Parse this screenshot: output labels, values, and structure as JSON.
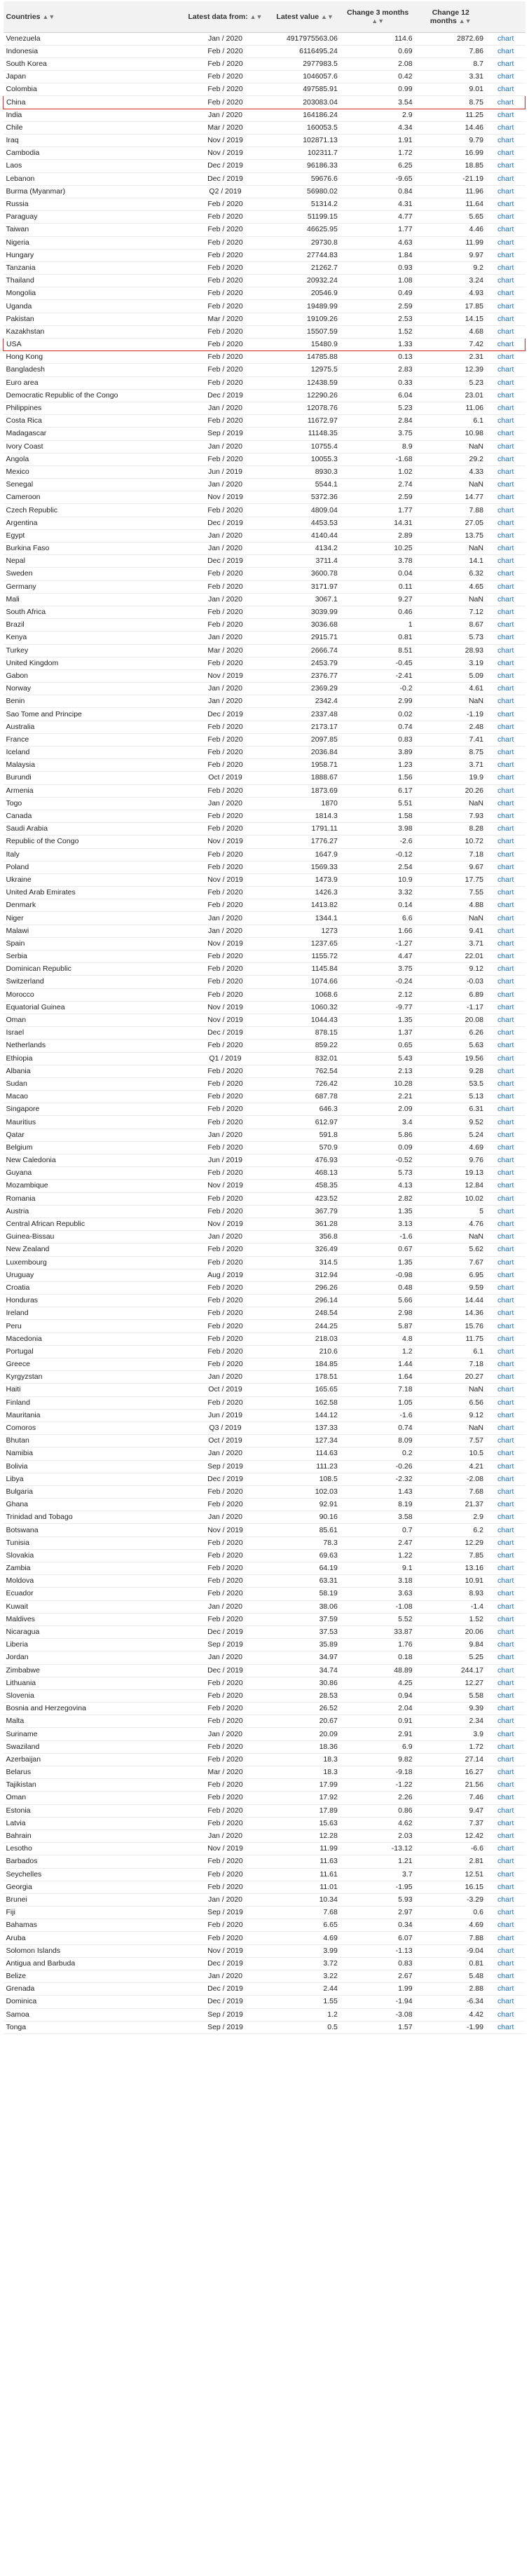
{
  "header": {
    "countries": "Countries",
    "latest_data": "Latest data from:",
    "latest_value": "Latest value",
    "change3": "Change 3 months",
    "change12": "Change 12 months",
    "sort_icon": "sort-arrows-icon"
  },
  "highlight_color": "#d62828",
  "link_color": "#1a6fc4",
  "rows": [
    [
      "Venezuela",
      "Jan / 2020",
      "4917975563.06",
      "114.6",
      "2872.69",
      "chart"
    ],
    [
      "Indonesia",
      "Feb / 2020",
      "6116495.24",
      "0.69",
      "7.86",
      "chart"
    ],
    [
      "South Korea",
      "Feb / 2020",
      "2977983.5",
      "2.08",
      "8.7",
      "chart"
    ],
    [
      "Japan",
      "Feb / 2020",
      "1046057.6",
      "0.42",
      "3.31",
      "chart"
    ],
    [
      "Colombia",
      "Feb / 2020",
      "497585.91",
      "0.99",
      "9.01",
      "chart"
    ],
    [
      "China",
      "Feb / 2020",
      "203083.04",
      "3.54",
      "8.75",
      "chart"
    ],
    [
      "India",
      "Jan / 2020",
      "164186.24",
      "2.9",
      "11.25",
      "chart"
    ],
    [
      "Chile",
      "Mar / 2020",
      "160053.5",
      "4.34",
      "14.46",
      "chart"
    ],
    [
      "Iraq",
      "Nov / 2019",
      "102871.13",
      "1.91",
      "9.79",
      "chart"
    ],
    [
      "Cambodia",
      "Nov / 2019",
      "102311.7",
      "1.72",
      "16.99",
      "chart"
    ],
    [
      "Laos",
      "Dec / 2019",
      "96186.33",
      "6.25",
      "18.85",
      "chart"
    ],
    [
      "Lebanon",
      "Dec / 2019",
      "59676.6",
      "-9.65",
      "-21.19",
      "chart"
    ],
    [
      "Burma (Myanmar)",
      "Q2 / 2019",
      "56980.02",
      "0.84",
      "11.96",
      "chart"
    ],
    [
      "Russia",
      "Feb / 2020",
      "51314.2",
      "4.31",
      "11.64",
      "chart"
    ],
    [
      "Paraguay",
      "Feb / 2020",
      "51199.15",
      "4.77",
      "5.65",
      "chart"
    ],
    [
      "Taiwan",
      "Feb / 2020",
      "46625.95",
      "1.77",
      "4.46",
      "chart"
    ],
    [
      "Nigeria",
      "Feb / 2020",
      "29730.8",
      "4.63",
      "11.99",
      "chart"
    ],
    [
      "Hungary",
      "Feb / 2020",
      "27744.83",
      "1.84",
      "9.97",
      "chart"
    ],
    [
      "Tanzania",
      "Feb / 2020",
      "21262.7",
      "0.93",
      "9.2",
      "chart"
    ],
    [
      "Thailand",
      "Feb / 2020",
      "20932.24",
      "1.08",
      "3.24",
      "chart"
    ],
    [
      "Mongolia",
      "Feb / 2020",
      "20546.9",
      "0.49",
      "4.93",
      "chart"
    ],
    [
      "Uganda",
      "Feb / 2020",
      "19489.99",
      "2.59",
      "17.85",
      "chart"
    ],
    [
      "Pakistan",
      "Mar / 2020",
      "19109.26",
      "2.53",
      "14.15",
      "chart"
    ],
    [
      "Kazakhstan",
      "Feb / 2020",
      "15507.59",
      "1.52",
      "4.68",
      "chart"
    ],
    [
      "USA",
      "Feb / 2020",
      "15480.9",
      "1.33",
      "7.42",
      "chart"
    ],
    [
      "Hong Kong",
      "Feb / 2020",
      "14785.88",
      "0.13",
      "2.31",
      "chart"
    ],
    [
      "Bangladesh",
      "Feb / 2020",
      "12975.5",
      "2.83",
      "12.39",
      "chart"
    ],
    [
      "Euro area",
      "Feb / 2020",
      "12438.59",
      "0.33",
      "5.23",
      "chart"
    ],
    [
      "Democratic Republic of the Congo",
      "Dec / 2019",
      "12290.26",
      "6.04",
      "23.01",
      "chart"
    ],
    [
      "Philippines",
      "Jan / 2020",
      "12078.76",
      "5.23",
      "11.06",
      "chart"
    ],
    [
      "Costa Rica",
      "Feb / 2020",
      "11672.97",
      "2.84",
      "6.1",
      "chart"
    ],
    [
      "Madagascar",
      "Sep / 2019",
      "11148.35",
      "3.75",
      "10.98",
      "chart"
    ],
    [
      "Ivory Coast",
      "Jan / 2020",
      "10755.4",
      "8.9",
      "NaN",
      "chart"
    ],
    [
      "Angola",
      "Feb / 2020",
      "10055.3",
      "-1.68",
      "29.2",
      "chart"
    ],
    [
      "Mexico",
      "Jun / 2019",
      "8930.3",
      "1.02",
      "4.33",
      "chart"
    ],
    [
      "Senegal",
      "Jan / 2020",
      "5544.1",
      "2.74",
      "NaN",
      "chart"
    ],
    [
      "Cameroon",
      "Nov / 2019",
      "5372.36",
      "2.59",
      "14.77",
      "chart"
    ],
    [
      "Czech Republic",
      "Feb / 2020",
      "4809.04",
      "1.77",
      "7.88",
      "chart"
    ],
    [
      "Argentina",
      "Dec / 2019",
      "4453.53",
      "14.31",
      "27.05",
      "chart"
    ],
    [
      "Egypt",
      "Jan / 2020",
      "4140.44",
      "2.89",
      "13.75",
      "chart"
    ],
    [
      "Burkina Faso",
      "Jan / 2020",
      "4134.2",
      "10.25",
      "NaN",
      "chart"
    ],
    [
      "Nepal",
      "Dec / 2019",
      "3711.4",
      "3.78",
      "14.1",
      "chart"
    ],
    [
      "Sweden",
      "Feb / 2020",
      "3600.78",
      "0.04",
      "6.32",
      "chart"
    ],
    [
      "Germany",
      "Feb / 2020",
      "3171.97",
      "0.11",
      "4.65",
      "chart"
    ],
    [
      "Mali",
      "Jan / 2020",
      "3067.1",
      "9.27",
      "NaN",
      "chart"
    ],
    [
      "South Africa",
      "Feb / 2020",
      "3039.99",
      "0.46",
      "7.12",
      "chart"
    ],
    [
      "Brazil",
      "Feb / 2020",
      "3036.68",
      "1",
      "8.67",
      "chart"
    ],
    [
      "Kenya",
      "Jan / 2020",
      "2915.71",
      "0.81",
      "5.73",
      "chart"
    ],
    [
      "Turkey",
      "Mar / 2020",
      "2666.74",
      "8.51",
      "28.93",
      "chart"
    ],
    [
      "United Kingdom",
      "Feb / 2020",
      "2453.79",
      "-0.45",
      "3.19",
      "chart"
    ],
    [
      "Gabon",
      "Nov / 2019",
      "2376.77",
      "-2.41",
      "5.09",
      "chart"
    ],
    [
      "Norway",
      "Jan / 2020",
      "2369.29",
      "-0.2",
      "4.61",
      "chart"
    ],
    [
      "Benin",
      "Jan / 2020",
      "2342.4",
      "2.99",
      "NaN",
      "chart"
    ],
    [
      "Sao Tome and Principe",
      "Dec / 2019",
      "2337.48",
      "0.02",
      "-1.19",
      "chart"
    ],
    [
      "Australia",
      "Feb / 2020",
      "2173.17",
      "0.74",
      "2.48",
      "chart"
    ],
    [
      "France",
      "Feb / 2020",
      "2097.85",
      "0.83",
      "7.41",
      "chart"
    ],
    [
      "Iceland",
      "Feb / 2020",
      "2036.84",
      "3.89",
      "8.75",
      "chart"
    ],
    [
      "Malaysia",
      "Feb / 2020",
      "1958.71",
      "1.23",
      "3.71",
      "chart"
    ],
    [
      "Burundi",
      "Oct / 2019",
      "1888.67",
      "1.56",
      "19.9",
      "chart"
    ],
    [
      "Armenia",
      "Feb / 2020",
      "1873.69",
      "6.17",
      "20.26",
      "chart"
    ],
    [
      "Togo",
      "Jan / 2020",
      "1870",
      "5.51",
      "NaN",
      "chart"
    ],
    [
      "Canada",
      "Feb / 2020",
      "1814.3",
      "1.58",
      "7.93",
      "chart"
    ],
    [
      "Saudi Arabia",
      "Feb / 2020",
      "1791.11",
      "3.98",
      "8.28",
      "chart"
    ],
    [
      "Republic of the Congo",
      "Nov / 2019",
      "1776.27",
      "-2.6",
      "10.72",
      "chart"
    ],
    [
      "Italy",
      "Feb / 2020",
      "1647.9",
      "-0.12",
      "7.18",
      "chart"
    ],
    [
      "Poland",
      "Feb / 2020",
      "1569.33",
      "2.54",
      "9.67",
      "chart"
    ],
    [
      "Ukraine",
      "Nov / 2019",
      "1473.9",
      "10.9",
      "17.75",
      "chart"
    ],
    [
      "United Arab Emirates",
      "Feb / 2020",
      "1426.3",
      "3.32",
      "7.55",
      "chart"
    ],
    [
      "Denmark",
      "Feb / 2020",
      "1413.82",
      "0.14",
      "4.88",
      "chart"
    ],
    [
      "Niger",
      "Jan / 2020",
      "1344.1",
      "6.6",
      "NaN",
      "chart"
    ],
    [
      "Malawi",
      "Jan / 2020",
      "1273",
      "1.66",
      "9.41",
      "chart"
    ],
    [
      "Spain",
      "Nov / 2019",
      "1237.65",
      "-1.27",
      "3.71",
      "chart"
    ],
    [
      "Serbia",
      "Feb / 2020",
      "1155.72",
      "4.47",
      "22.01",
      "chart"
    ],
    [
      "Dominican Republic",
      "Feb / 2020",
      "1145.84",
      "3.75",
      "9.12",
      "chart"
    ],
    [
      "Switzerland",
      "Feb / 2020",
      "1074.66",
      "-0.24",
      "-0.03",
      "chart"
    ],
    [
      "Morocco",
      "Feb / 2020",
      "1068.6",
      "2.12",
      "6.89",
      "chart"
    ],
    [
      "Equatorial Guinea",
      "Nov / 2019",
      "1060.32",
      "-9.77",
      "-1.17",
      "chart"
    ],
    [
      "Oman",
      "Nov / 2019",
      "1044.43",
      "1.35",
      "20.08",
      "chart"
    ],
    [
      "Israel",
      "Dec / 2019",
      "878.15",
      "1.37",
      "6.26",
      "chart"
    ],
    [
      "Netherlands",
      "Feb / 2020",
      "859.22",
      "0.65",
      "5.63",
      "chart"
    ],
    [
      "Ethiopia",
      "Q1 / 2019",
      "832.01",
      "5.43",
      "19.56",
      "chart"
    ],
    [
      "Albania",
      "Feb / 2020",
      "762.54",
      "2.13",
      "9.28",
      "chart"
    ],
    [
      "Sudan",
      "Feb / 2020",
      "726.42",
      "10.28",
      "53.5",
      "chart"
    ],
    [
      "Macao",
      "Feb / 2020",
      "687.78",
      "2.21",
      "5.13",
      "chart"
    ],
    [
      "Singapore",
      "Feb / 2020",
      "646.3",
      "2.09",
      "6.31",
      "chart"
    ],
    [
      "Mauritius",
      "Feb / 2020",
      "612.97",
      "3.4",
      "9.52",
      "chart"
    ],
    [
      "Qatar",
      "Jan / 2020",
      "591.8",
      "5.86",
      "5.24",
      "chart"
    ],
    [
      "Belgium",
      "Feb / 2020",
      "570.9",
      "0.09",
      "4.69",
      "chart"
    ],
    [
      "New Caledonia",
      "Jun / 2019",
      "476.93",
      "-0.52",
      "9.76",
      "chart"
    ],
    [
      "Guyana",
      "Feb / 2020",
      "468.13",
      "5.73",
      "19.13",
      "chart"
    ],
    [
      "Mozambique",
      "Nov / 2019",
      "458.35",
      "4.13",
      "12.84",
      "chart"
    ],
    [
      "Romania",
      "Feb / 2020",
      "423.52",
      "2.82",
      "10.02",
      "chart"
    ],
    [
      "Austria",
      "Feb / 2020",
      "367.79",
      "1.35",
      "5",
      "chart"
    ],
    [
      "Central African Republic",
      "Nov / 2019",
      "361.28",
      "3.13",
      "4.76",
      "chart"
    ],
    [
      "Guinea-Bissau",
      "Jan / 2020",
      "356.8",
      "-1.6",
      "NaN",
      "chart"
    ],
    [
      "New Zealand",
      "Feb / 2020",
      "326.49",
      "0.67",
      "5.62",
      "chart"
    ],
    [
      "Luxembourg",
      "Feb / 2020",
      "314.5",
      "1.35",
      "7.67",
      "chart"
    ],
    [
      "Uruguay",
      "Aug / 2019",
      "312.94",
      "-0.98",
      "6.95",
      "chart"
    ],
    [
      "Croatia",
      "Feb / 2020",
      "296.26",
      "0.48",
      "9.59",
      "chart"
    ],
    [
      "Honduras",
      "Feb / 2020",
      "296.14",
      "5.66",
      "14.44",
      "chart"
    ],
    [
      "Ireland",
      "Feb / 2020",
      "248.54",
      "2.98",
      "14.36",
      "chart"
    ],
    [
      "Peru",
      "Feb / 2020",
      "244.25",
      "5.87",
      "15.76",
      "chart"
    ],
    [
      "Macedonia",
      "Feb / 2020",
      "218.03",
      "4.8",
      "11.75",
      "chart"
    ],
    [
      "Portugal",
      "Feb / 2020",
      "210.6",
      "1.2",
      "6.1",
      "chart"
    ],
    [
      "Greece",
      "Feb / 2020",
      "184.85",
      "1.44",
      "7.18",
      "chart"
    ],
    [
      "Kyrgyzstan",
      "Jan / 2020",
      "178.51",
      "1.64",
      "20.27",
      "chart"
    ],
    [
      "Haiti",
      "Oct / 2019",
      "165.65",
      "7.18",
      "NaN",
      "chart"
    ],
    [
      "Finland",
      "Feb / 2020",
      "162.58",
      "1.05",
      "6.56",
      "chart"
    ],
    [
      "Mauritania",
      "Jun / 2019",
      "144.12",
      "-1.6",
      "9.12",
      "chart"
    ],
    [
      "Comoros",
      "Q3 / 2019",
      "137.33",
      "0.74",
      "NaN",
      "chart"
    ],
    [
      "Bhutan",
      "Oct / 2019",
      "127.34",
      "8.09",
      "7.57",
      "chart"
    ],
    [
      "Namibia",
      "Jan / 2020",
      "114.63",
      "0.2",
      "10.5",
      "chart"
    ],
    [
      "Bolivia",
      "Sep / 2019",
      "111.23",
      "-0.26",
      "4.21",
      "chart"
    ],
    [
      "Libya",
      "Dec / 2019",
      "108.5",
      "-2.32",
      "-2.08",
      "chart"
    ],
    [
      "Bulgaria",
      "Feb / 2020",
      "102.03",
      "1.43",
      "7.68",
      "chart"
    ],
    [
      "Ghana",
      "Feb / 2020",
      "92.91",
      "8.19",
      "21.37",
      "chart"
    ],
    [
      "Trinidad and Tobago",
      "Jan / 2020",
      "90.16",
      "3.58",
      "2.9",
      "chart"
    ],
    [
      "Botswana",
      "Nov / 2019",
      "85.61",
      "0.7",
      "6.2",
      "chart"
    ],
    [
      "Tunisia",
      "Feb / 2020",
      "78.3",
      "2.47",
      "12.29",
      "chart"
    ],
    [
      "Slovakia",
      "Feb / 2020",
      "69.63",
      "1.22",
      "7.85",
      "chart"
    ],
    [
      "Zambia",
      "Feb / 2020",
      "64.19",
      "9.1",
      "13.16",
      "chart"
    ],
    [
      "Moldova",
      "Feb / 2020",
      "63.31",
      "3.18",
      "10.91",
      "chart"
    ],
    [
      "Ecuador",
      "Feb / 2020",
      "58.19",
      "3.63",
      "8.93",
      "chart"
    ],
    [
      "Kuwait",
      "Jan / 2020",
      "38.06",
      "-1.08",
      "-1.4",
      "chart"
    ],
    [
      "Maldives",
      "Feb / 2020",
      "37.59",
      "5.52",
      "1.52",
      "chart"
    ],
    [
      "Nicaragua",
      "Dec / 2019",
      "37.53",
      "33.87",
      "20.06",
      "chart"
    ],
    [
      "Liberia",
      "Sep / 2019",
      "35.89",
      "1.76",
      "9.84",
      "chart"
    ],
    [
      "Jordan",
      "Jan / 2020",
      "34.97",
      "0.18",
      "5.25",
      "chart"
    ],
    [
      "Zimbabwe",
      "Dec / 2019",
      "34.74",
      "48.89",
      "244.17",
      "chart"
    ],
    [
      "Lithuania",
      "Feb / 2020",
      "30.86",
      "4.25",
      "12.27",
      "chart"
    ],
    [
      "Slovenia",
      "Feb / 2020",
      "28.53",
      "0.94",
      "5.58",
      "chart"
    ],
    [
      "Bosnia and Herzegovina",
      "Feb / 2020",
      "26.52",
      "2.04",
      "9.39",
      "chart"
    ],
    [
      "Malta",
      "Feb / 2020",
      "20.67",
      "0.91",
      "2.34",
      "chart"
    ],
    [
      "Suriname",
      "Jan / 2020",
      "20.09",
      "2.91",
      "3.9",
      "chart"
    ],
    [
      "Swaziland",
      "Feb / 2020",
      "18.36",
      "6.9",
      "1.72",
      "chart"
    ],
    [
      "Azerbaijan",
      "Feb / 2020",
      "18.3",
      "9.82",
      "27.14",
      "chart"
    ],
    [
      "Belarus",
      "Mar / 2020",
      "18.3",
      "-9.18",
      "16.27",
      "chart"
    ],
    [
      "Tajikistan",
      "Feb / 2020",
      "17.99",
      "-1.22",
      "21.56",
      "chart"
    ],
    [
      "Oman",
      "Feb / 2020",
      "17.92",
      "2.26",
      "7.46",
      "chart"
    ],
    [
      "Estonia",
      "Feb / 2020",
      "17.89",
      "0.86",
      "9.47",
      "chart"
    ],
    [
      "Latvia",
      "Feb / 2020",
      "15.63",
      "4.62",
      "7.37",
      "chart"
    ],
    [
      "Bahrain",
      "Jan / 2020",
      "12.28",
      "2.03",
      "12.42",
      "chart"
    ],
    [
      "Lesotho",
      "Nov / 2019",
      "11.99",
      "-13.12",
      "-6.6",
      "chart"
    ],
    [
      "Barbados",
      "Feb / 2020",
      "11.63",
      "1.21",
      "2.81",
      "chart"
    ],
    [
      "Seychelles",
      "Feb / 2020",
      "11.61",
      "3.7",
      "12.51",
      "chart"
    ],
    [
      "Georgia",
      "Feb / 2020",
      "11.01",
      "-1.95",
      "16.15",
      "chart"
    ],
    [
      "Brunei",
      "Jan / 2020",
      "10.34",
      "5.93",
      "-3.29",
      "chart"
    ],
    [
      "Fiji",
      "Sep / 2019",
      "7.68",
      "2.97",
      "0.6",
      "chart"
    ],
    [
      "Bahamas",
      "Feb / 2020",
      "6.65",
      "0.34",
      "4.69",
      "chart"
    ],
    [
      "Aruba",
      "Feb / 2020",
      "4.69",
      "6.07",
      "7.88",
      "chart"
    ],
    [
      "Solomon Islands",
      "Nov / 2019",
      "3.99",
      "-1.13",
      "-9.04",
      "chart"
    ],
    [
      "Antigua and Barbuda",
      "Dec / 2019",
      "3.72",
      "0.83",
      "0.81",
      "chart"
    ],
    [
      "Belize",
      "Jan / 2020",
      "3.22",
      "2.67",
      "5.48",
      "chart"
    ],
    [
      "Grenada",
      "Dec / 2019",
      "2.44",
      "1.99",
      "2.88",
      "chart"
    ],
    [
      "Dominica",
      "Dec / 2019",
      "1.55",
      "-1.94",
      "-6.34",
      "chart"
    ],
    [
      "Samoa",
      "Sep / 2019",
      "1.2",
      "-3.08",
      "4.42",
      "chart"
    ],
    [
      "Tonga",
      "Sep / 2019",
      "0.5",
      "1.57",
      "-1.99",
      "chart"
    ]
  ],
  "highlighted": [
    "China",
    "USA"
  ]
}
